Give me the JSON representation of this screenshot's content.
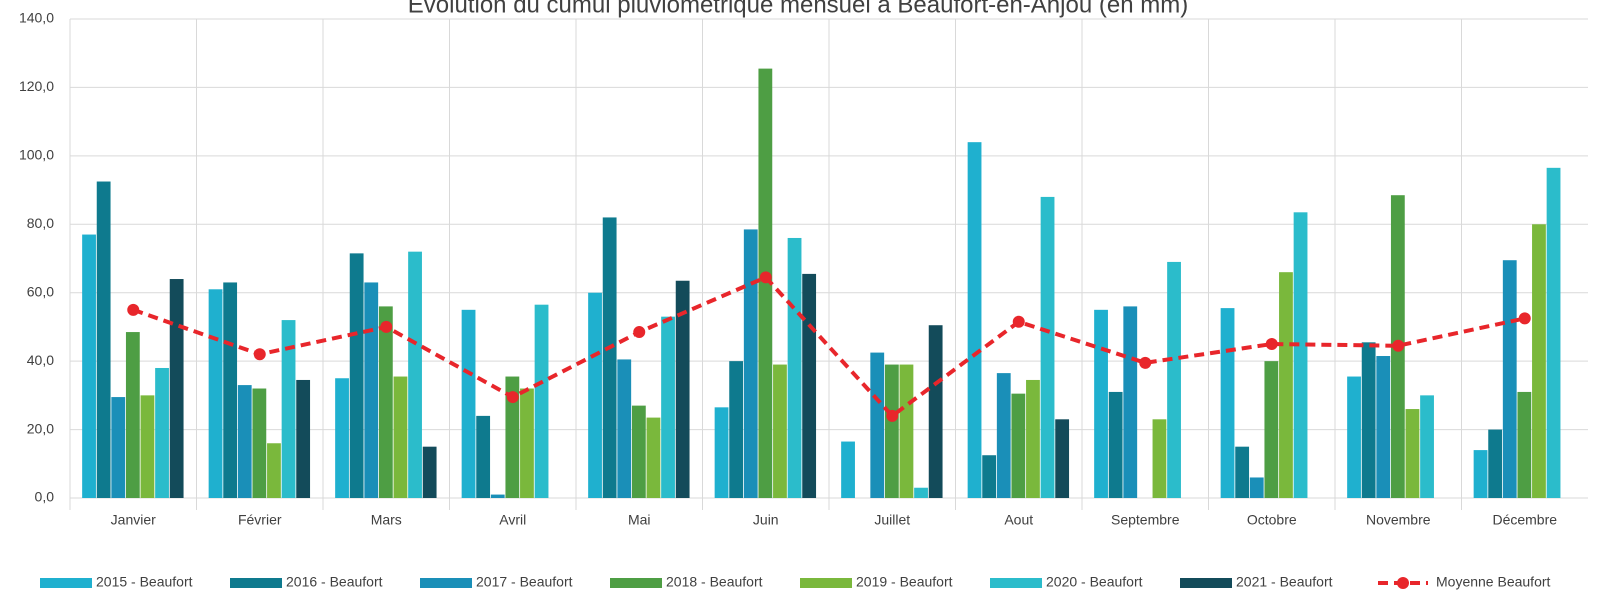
{
  "chart_data": {
    "type": "bar",
    "title": "Evolution du cumul pluviométrique mensuel à Beaufort-en-Anjou (en mm)",
    "categories": [
      "Janvier",
      "Février",
      "Mars",
      "Avril",
      "Mai",
      "Juin",
      "Juillet",
      "Aout",
      "Septembre",
      "Octobre",
      "Novembre",
      "Décembre"
    ],
    "series": [
      {
        "name": "2015 - Beaufort",
        "color": "#1fb0cf",
        "values": [
          77,
          61,
          35,
          55,
          60,
          26.5,
          16.5,
          104,
          55,
          55.5,
          35.5,
          14
        ]
      },
      {
        "name": "2016 - Beaufort",
        "color": "#0e7a8e",
        "values": [
          92.5,
          63,
          71.5,
          24,
          82,
          40,
          null,
          12.5,
          31,
          15,
          45.5,
          20
        ]
      },
      {
        "name": "2017 - Beaufort",
        "color": "#1a8fb8",
        "values": [
          29.5,
          33,
          63,
          1,
          40.5,
          78.5,
          42.5,
          36.5,
          56,
          6,
          41.5,
          69.5
        ]
      },
      {
        "name": "2018 - Beaufort",
        "color": "#4e9e44",
        "values": [
          48.5,
          32,
          56,
          35.5,
          27,
          125.5,
          39,
          30.5,
          null,
          40,
          88.5,
          31
        ]
      },
      {
        "name": "2019 - Beaufort",
        "color": "#7ab83c",
        "values": [
          30,
          16,
          35.5,
          32,
          23.5,
          39,
          39,
          34.5,
          23,
          66,
          26,
          80
        ]
      },
      {
        "name": "2020 - Beaufort",
        "color": "#2bbccb",
        "values": [
          38,
          52,
          72,
          56.5,
          53,
          76,
          3,
          88,
          69,
          83.5,
          30,
          96.5
        ]
      },
      {
        "name": "2021 - Beaufort",
        "color": "#134b5a",
        "values": [
          64,
          34.5,
          15,
          null,
          63.5,
          65.5,
          50.5,
          23,
          null,
          null,
          null,
          null
        ]
      },
      {
        "name": "Moyenne Beaufort",
        "color": "#e8262b",
        "type": "line",
        "values": [
          55,
          42,
          50,
          29.5,
          48.5,
          64.5,
          24,
          51.5,
          39.5,
          45,
          44.5,
          52.5
        ]
      }
    ],
    "ylim": [
      0,
      140
    ],
    "yticks": [
      {
        "value": 0,
        "label": "0,0"
      },
      {
        "value": 20,
        "label": "20,0"
      },
      {
        "value": 40,
        "label": "40,0"
      },
      {
        "value": 60,
        "label": "60,0"
      },
      {
        "value": 80,
        "label": "80,0"
      },
      {
        "value": 100,
        "label": "100,0"
      },
      {
        "value": 120,
        "label": "120,0"
      },
      {
        "value": 140,
        "label": "140,0"
      }
    ],
    "grid": true,
    "legend": "bottom"
  }
}
